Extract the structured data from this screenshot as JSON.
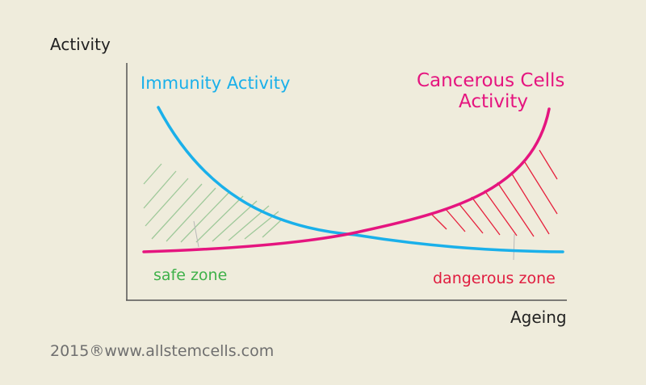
{
  "axes": {
    "y_label": "Activity",
    "x_label": "Ageing"
  },
  "curves": {
    "immunity": {
      "label": "Immunity Activity",
      "color": "#1ab0ea"
    },
    "cancer": {
      "label_line1": "Cancerous Cells",
      "label_line2": "Activity",
      "color": "#e5157f"
    }
  },
  "zones": {
    "safe": {
      "label": "safe zone",
      "color": "#3fb14a",
      "hatch_color": "#9fc99a"
    },
    "danger": {
      "label": "dangerous zone",
      "color": "#e01c3f",
      "hatch_color": "#e6203c"
    }
  },
  "footer": "2015®www.allstemcells.com"
}
